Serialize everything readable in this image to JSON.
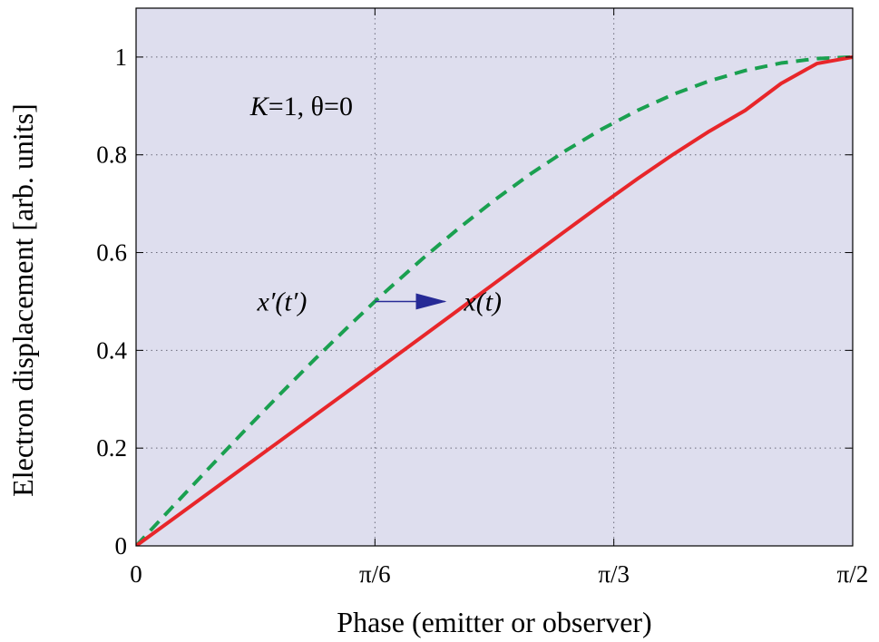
{
  "chart_data": {
    "type": "line",
    "xlabel": "Phase (emitter or observer)",
    "ylabel": "Electron displacement [arb. units]",
    "xlim": [
      0,
      1.5708
    ],
    "ylim": [
      0,
      1.1
    ],
    "grid": true,
    "x_ticks": [
      {
        "value": 0,
        "label": "0"
      },
      {
        "value": 0.5236,
        "label": "π/6"
      },
      {
        "value": 1.0472,
        "label": "π/3"
      },
      {
        "value": 1.5708,
        "label": "π/2"
      }
    ],
    "y_ticks": [
      {
        "value": 0,
        "label": "0"
      },
      {
        "value": 0.2,
        "label": "0.2"
      },
      {
        "value": 0.4,
        "label": "0.4"
      },
      {
        "value": 0.6,
        "label": "0.6"
      },
      {
        "value": 0.8,
        "label": "0.8"
      },
      {
        "value": 1,
        "label": "1"
      }
    ],
    "series": [
      {
        "color": "#1aa050",
        "style": "dashed",
        "x": [
          0,
          0.0785,
          0.1571,
          0.2356,
          0.3142,
          0.3927,
          0.4712,
          0.5236,
          0.5498,
          0.6283,
          0.7069,
          0.7854,
          0.8639,
          0.9425,
          1.021,
          1.0996,
          1.1781,
          1.2566,
          1.3352,
          1.4137,
          1.4923,
          1.5708
        ],
        "y": [
          0,
          0.0785,
          0.1564,
          0.2334,
          0.309,
          0.3827,
          0.454,
          0.5,
          0.5225,
          0.5878,
          0.6494,
          0.7071,
          0.7604,
          0.809,
          0.8526,
          0.891,
          0.9239,
          0.9511,
          0.9724,
          0.9877,
          0.9969,
          1
        ]
      },
      {
        "color": "#e8262a",
        "style": "solid",
        "x": [
          0,
          0.0785,
          0.1571,
          0.2356,
          0.3142,
          0.3927,
          0.4712,
          0.5498,
          0.6283,
          0.6769,
          0.7069,
          0.7854,
          0.8639,
          0.9425,
          1.021,
          1.0996,
          1.1781,
          1.2566,
          1.3352,
          1.4137,
          1.4923,
          1.5708
        ],
        "y": [
          0,
          0.0534,
          0.1069,
          0.1604,
          0.2139,
          0.2675,
          0.3211,
          0.3749,
          0.4288,
          0.4622,
          0.4828,
          0.5369,
          0.5911,
          0.6452,
          0.6989,
          0.7512,
          0.8013,
          0.8482,
          0.8909,
          0.9458,
          0.9867,
          1
        ]
      }
    ],
    "annotations": {
      "params": {
        "k_symbol": "K",
        "rest": "=1, θ=0",
        "x": 0.25,
        "y": 0.9
      },
      "dashed_label": {
        "text": "x′(t′)",
        "x": 0.32,
        "y": 0.5
      },
      "solid_label": {
        "text": "x(t)",
        "x": 0.76,
        "y": 0.5
      },
      "arrow": {
        "x_start": 0.5236,
        "x_end": 0.6769,
        "y": 0.5,
        "color": "#262a96"
      }
    },
    "background": "#dedeee"
  }
}
